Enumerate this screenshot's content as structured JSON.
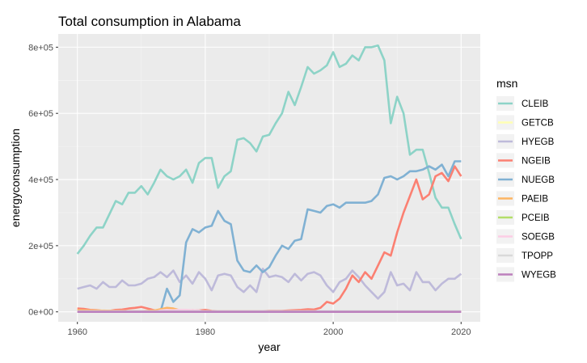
{
  "chart_data": {
    "type": "line",
    "title": "Total consumption in Alabama",
    "xlabel": "year",
    "ylabel": "energyconsumption",
    "xlim": [
      1957,
      2023
    ],
    "ylim": [
      -30000,
      840000
    ],
    "x_ticks": [
      1960,
      1980,
      2000,
      2020
    ],
    "y_ticks": [
      0,
      200000,
      400000,
      600000,
      800000
    ],
    "y_tick_labels": [
      "0e+00",
      "2e+05",
      "4e+05",
      "6e+05",
      "8e+05"
    ],
    "legend_title": "msn",
    "series": [
      {
        "name": "CLEIB",
        "color": "#8dd3c7",
        "x": [
          1960,
          1961,
          1962,
          1963,
          1964,
          1965,
          1966,
          1967,
          1968,
          1969,
          1970,
          1971,
          1972,
          1973,
          1974,
          1975,
          1976,
          1977,
          1978,
          1979,
          1980,
          1981,
          1982,
          1983,
          1984,
          1985,
          1986,
          1987,
          1988,
          1989,
          1990,
          1991,
          1992,
          1993,
          1994,
          1995,
          1996,
          1997,
          1998,
          1999,
          2000,
          2001,
          2002,
          2003,
          2004,
          2005,
          2006,
          2007,
          2008,
          2009,
          2010,
          2011,
          2012,
          2013,
          2014,
          2015,
          2016,
          2017,
          2018,
          2019,
          2020
        ],
        "values": [
          175000,
          200000,
          230000,
          255000,
          255000,
          295000,
          335000,
          325000,
          360000,
          360000,
          380000,
          355000,
          390000,
          430000,
          410000,
          400000,
          410000,
          430000,
          390000,
          450000,
          465000,
          465000,
          375000,
          410000,
          425000,
          520000,
          525000,
          510000,
          485000,
          530000,
          535000,
          570000,
          600000,
          665000,
          625000,
          680000,
          740000,
          720000,
          730000,
          745000,
          785000,
          740000,
          750000,
          775000,
          760000,
          800000,
          800000,
          805000,
          760000,
          570000,
          650000,
          600000,
          475000,
          490000,
          490000,
          420000,
          345000,
          315000,
          315000,
          265000,
          220000
        ]
      },
      {
        "name": "GETCB",
        "color": "#ffffb3",
        "x": [
          1960,
          2020
        ],
        "values": [
          0,
          0
        ]
      },
      {
        "name": "HYEGB",
        "color": "#bebada",
        "x": [
          1960,
          1961,
          1962,
          1963,
          1964,
          1965,
          1966,
          1967,
          1968,
          1969,
          1970,
          1971,
          1972,
          1973,
          1974,
          1975,
          1976,
          1977,
          1978,
          1979,
          1980,
          1981,
          1982,
          1983,
          1984,
          1985,
          1986,
          1987,
          1988,
          1989,
          1990,
          1991,
          1992,
          1993,
          1994,
          1995,
          1996,
          1997,
          1998,
          1999,
          2000,
          2001,
          2002,
          2003,
          2004,
          2005,
          2006,
          2007,
          2008,
          2009,
          2010,
          2011,
          2012,
          2013,
          2014,
          2015,
          2016,
          2017,
          2018,
          2019,
          2020
        ],
        "values": [
          70000,
          75000,
          80000,
          70000,
          90000,
          75000,
          75000,
          95000,
          80000,
          80000,
          85000,
          100000,
          105000,
          120000,
          105000,
          125000,
          90000,
          110000,
          85000,
          120000,
          100000,
          65000,
          110000,
          115000,
          110000,
          75000,
          60000,
          80000,
          60000,
          130000,
          105000,
          110000,
          105000,
          90000,
          115000,
          95000,
          115000,
          120000,
          110000,
          80000,
          60000,
          90000,
          100000,
          125000,
          105000,
          80000,
          60000,
          40000,
          60000,
          120000,
          80000,
          85000,
          65000,
          120000,
          90000,
          90000,
          65000,
          85000,
          100000,
          100000,
          115000
        ]
      },
      {
        "name": "NGEIB",
        "color": "#fb8072",
        "x": [
          1960,
          1961,
          1962,
          1963,
          1964,
          1965,
          1966,
          1967,
          1968,
          1969,
          1970,
          1971,
          1972,
          1973,
          1974,
          1975,
          1976,
          1977,
          1978,
          1979,
          1980,
          1981,
          1982,
          1983,
          1984,
          1985,
          1986,
          1987,
          1988,
          1989,
          1990,
          1991,
          1992,
          1993,
          1994,
          1995,
          1996,
          1997,
          1998,
          1999,
          2000,
          2001,
          2002,
          2003,
          2004,
          2005,
          2006,
          2007,
          2008,
          2009,
          2010,
          2011,
          2012,
          2013,
          2014,
          2015,
          2016,
          2017,
          2018,
          2019,
          2020
        ],
        "values": [
          10000,
          9000,
          6000,
          5000,
          3000,
          3000,
          6000,
          7000,
          10000,
          12000,
          15000,
          10000,
          5000,
          2000,
          5000,
          6000,
          4000,
          3000,
          5000,
          4000,
          6000,
          3000,
          2000,
          2000,
          2000,
          2000,
          2000,
          2000,
          2000,
          2000,
          3000,
          3000,
          3000,
          4000,
          5000,
          6000,
          8000,
          7000,
          12000,
          30000,
          25000,
          40000,
          70000,
          110000,
          90000,
          120000,
          100000,
          140000,
          180000,
          170000,
          240000,
          300000,
          350000,
          400000,
          340000,
          355000,
          410000,
          420000,
          395000,
          440000,
          410000
        ]
      },
      {
        "name": "NUEGB",
        "color": "#80b1d3",
        "x": [
          1973,
          1974,
          1975,
          1976,
          1977,
          1978,
          1979,
          1980,
          1981,
          1982,
          1983,
          1984,
          1985,
          1986,
          1987,
          1988,
          1989,
          1990,
          1991,
          1992,
          1993,
          1994,
          1995,
          1996,
          1997,
          1998,
          1999,
          2000,
          2001,
          2002,
          2003,
          2004,
          2005,
          2006,
          2007,
          2008,
          2009,
          2010,
          2011,
          2012,
          2013,
          2014,
          2015,
          2016,
          2017,
          2018,
          2019,
          2020
        ],
        "values": [
          0,
          70000,
          30000,
          50000,
          210000,
          250000,
          240000,
          255000,
          260000,
          305000,
          275000,
          265000,
          155000,
          125000,
          120000,
          140000,
          120000,
          135000,
          170000,
          200000,
          190000,
          215000,
          220000,
          310000,
          305000,
          300000,
          320000,
          325000,
          315000,
          330000,
          330000,
          330000,
          330000,
          335000,
          355000,
          405000,
          410000,
          400000,
          410000,
          425000,
          425000,
          430000,
          440000,
          430000,
          445000,
          410000,
          455000,
          455000
        ]
      },
      {
        "name": "PAEIB",
        "color": "#fdb462",
        "x": [
          1960,
          1963,
          1966,
          1970,
          1972,
          1973,
          1974,
          1975,
          1976,
          1977,
          1978,
          1979,
          1980,
          1990,
          2000,
          2010,
          2020
        ],
        "values": [
          5000,
          4000,
          3000,
          2000,
          4000,
          8000,
          12000,
          10000,
          5000,
          4000,
          3000,
          2000,
          1000,
          1000,
          1000,
          1000,
          1000
        ]
      },
      {
        "name": "PCEIB",
        "color": "#b3de69",
        "x": [
          1960,
          2020
        ],
        "values": [
          0,
          0
        ]
      },
      {
        "name": "SOEGB",
        "color": "#fccde5",
        "x": [
          1960,
          1972,
          1973,
          1974,
          1975,
          1976,
          1977,
          1978,
          1979,
          1980,
          1981,
          1982,
          2020
        ],
        "values": [
          0,
          0,
          4000,
          6000,
          5000,
          6000,
          6000,
          5000,
          4000,
          0,
          0,
          0,
          0
        ]
      },
      {
        "name": "TPOPP",
        "color": "#d9d9d9",
        "x": [
          1960,
          2020
        ],
        "values": [
          2000,
          2000
        ]
      },
      {
        "name": "WYEGB",
        "color": "#bc80bd",
        "x": [
          1960,
          2020
        ],
        "values": [
          0,
          0
        ]
      }
    ]
  }
}
